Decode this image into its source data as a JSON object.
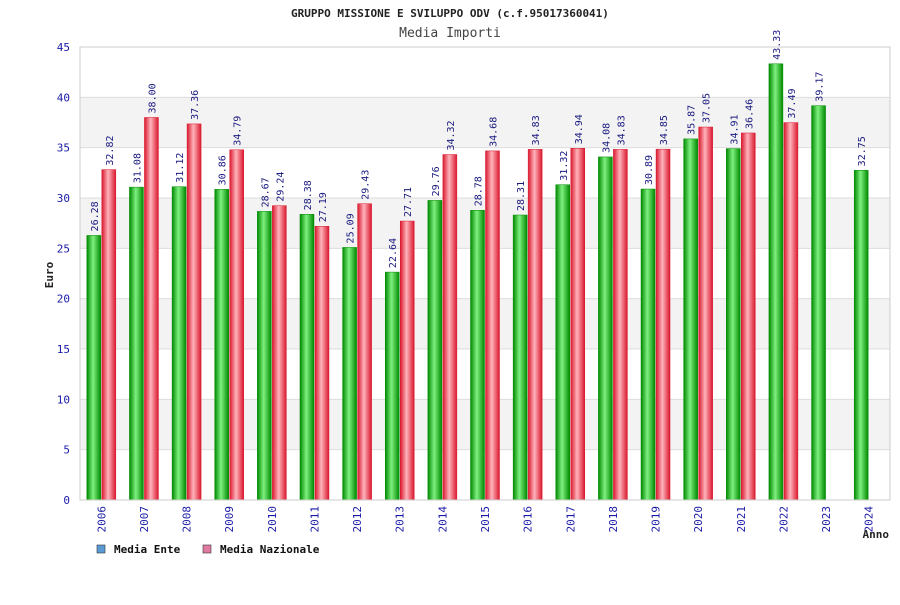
{
  "chart_data": {
    "type": "bar",
    "title": "GRUPPO MISSIONE E SVILUPPO ODV (c.f.95017360041)",
    "subtitle": "Media Importi",
    "xlabel": "Anno",
    "ylabel": "Euro",
    "ylim": [
      0,
      45
    ],
    "yticks": [
      0,
      5,
      10,
      15,
      20,
      25,
      30,
      35,
      40,
      45
    ],
    "categories": [
      "2006",
      "2007",
      "2008",
      "2009",
      "2010",
      "2011",
      "2012",
      "2013",
      "2014",
      "2015",
      "2016",
      "2017",
      "2018",
      "2019",
      "2020",
      "2021",
      "2022",
      "2023",
      "2024"
    ],
    "series": [
      {
        "name": "Media Ente",
        "values": [
          26.28,
          31.08,
          31.12,
          30.86,
          28.67,
          28.38,
          25.09,
          22.64,
          29.76,
          28.78,
          28.31,
          31.32,
          34.08,
          30.89,
          35.87,
          34.91,
          43.33,
          39.17,
          32.75
        ],
        "labels": [
          "26.28",
          "31.08",
          "31.12",
          "30.86",
          "28.67",
          "28.38",
          "25.09",
          "22.64",
          "29.76",
          "28.78",
          "28.31",
          "31.32",
          "34.08",
          "30.89",
          "35.87",
          "34.91",
          "43.33",
          "39.17",
          "32.75"
        ]
      },
      {
        "name": "Media Nazionale",
        "values": [
          32.82,
          38.0,
          37.36,
          34.79,
          29.24,
          27.19,
          29.43,
          27.71,
          34.32,
          34.68,
          34.83,
          34.94,
          34.83,
          34.85,
          37.05,
          36.46,
          37.49,
          null,
          null
        ],
        "labels": [
          "32.82",
          "38.00",
          "37.36",
          "34.79",
          "29.24",
          "27.19",
          "29.43",
          "27.71",
          "34.32",
          "34.68",
          "34.83",
          "34.94",
          "34.83",
          "34.85",
          "37.05",
          "36.46",
          "37.49",
          null,
          null
        ]
      }
    ],
    "legend": {
      "position": "bottom-left",
      "entries": [
        {
          "name": "Media Ente",
          "swatch_color": "#5b9bd5"
        },
        {
          "name": "Media Nazionale",
          "swatch_color": "#e07aa0"
        }
      ]
    },
    "colors": {
      "ente_dark": "#008a00",
      "ente_light": "#7ff07f",
      "naz_dark": "#d9182e",
      "naz_light": "#ffb3bb",
      "band": "#f3f3f3",
      "grid": "#dddddd"
    },
    "grid": true
  }
}
